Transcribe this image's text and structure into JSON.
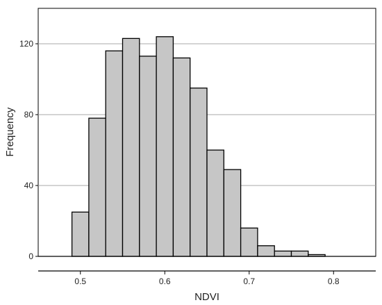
{
  "chart_data": {
    "type": "bar",
    "title": "",
    "xlabel": "NDVI",
    "ylabel": "Frequency",
    "bin_edges": [
      0.45,
      0.47,
      0.49,
      0.51,
      0.53,
      0.55,
      0.57,
      0.59,
      0.61,
      0.63,
      0.65,
      0.67,
      0.69,
      0.71,
      0.73,
      0.75,
      0.77,
      0.79,
      0.81,
      0.83,
      0.85
    ],
    "values": [
      0,
      0,
      25,
      78,
      116,
      123,
      113,
      124,
      112,
      95,
      60,
      49,
      16,
      6,
      3,
      3,
      1,
      0,
      0,
      0
    ],
    "xlim": [
      0.45,
      0.85
    ],
    "ylim": [
      0,
      140
    ],
    "xticks": [
      0.5,
      0.6,
      0.7,
      0.8
    ],
    "xtick_labels": [
      "0.5",
      "0.6",
      "0.7",
      "0.8"
    ],
    "yticks": [
      0,
      40,
      80,
      120
    ],
    "ytick_labels": [
      "0",
      "40",
      "80",
      "120"
    ],
    "grid": "horizontal",
    "colors": {
      "bar_fill": "#c6c6c6",
      "bar_stroke": "#000000",
      "grid": "#a8a8a8"
    }
  }
}
